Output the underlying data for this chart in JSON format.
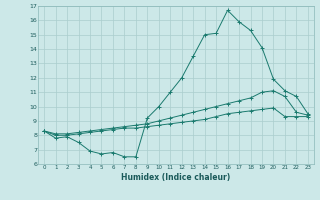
{
  "xlabel": "Humidex (Indice chaleur)",
  "bg_color": "#cce8e8",
  "line_color": "#1a7a6e",
  "grid_color": "#aacece",
  "xlim": [
    -0.5,
    23.5
  ],
  "ylim": [
    6,
    17
  ],
  "xticks": [
    0,
    1,
    2,
    3,
    4,
    5,
    6,
    7,
    8,
    9,
    10,
    11,
    12,
    13,
    14,
    15,
    16,
    17,
    18,
    19,
    20,
    21,
    22,
    23
  ],
  "yticks": [
    6,
    7,
    8,
    9,
    10,
    11,
    12,
    13,
    14,
    15,
    16,
    17
  ],
  "curve1_x": [
    0,
    1,
    2,
    3,
    4,
    5,
    6,
    7,
    8,
    9,
    10,
    11,
    12,
    13,
    14,
    15,
    16,
    17,
    18,
    19,
    20,
    21,
    22,
    23
  ],
  "curve1_y": [
    8.3,
    7.8,
    7.9,
    7.5,
    6.9,
    6.7,
    6.8,
    6.5,
    6.5,
    9.2,
    10.0,
    11.0,
    12.0,
    13.5,
    15.0,
    15.1,
    16.7,
    15.9,
    15.3,
    14.1,
    11.9,
    11.1,
    10.7,
    9.5
  ],
  "curve2_x": [
    0,
    1,
    2,
    3,
    4,
    5,
    6,
    7,
    8,
    9,
    10,
    11,
    12,
    13,
    14,
    15,
    16,
    17,
    18,
    19,
    20,
    21,
    22,
    23
  ],
  "curve2_y": [
    8.3,
    8.1,
    8.1,
    8.2,
    8.3,
    8.4,
    8.5,
    8.6,
    8.7,
    8.8,
    9.0,
    9.2,
    9.4,
    9.6,
    9.8,
    10.0,
    10.2,
    10.4,
    10.6,
    11.0,
    11.1,
    10.7,
    9.6,
    9.4
  ],
  "curve3_x": [
    0,
    1,
    2,
    3,
    4,
    5,
    6,
    7,
    8,
    9,
    10,
    11,
    12,
    13,
    14,
    15,
    16,
    17,
    18,
    19,
    20,
    21,
    22,
    23
  ],
  "curve3_y": [
    8.3,
    8.0,
    8.0,
    8.1,
    8.2,
    8.3,
    8.4,
    8.5,
    8.5,
    8.6,
    8.7,
    8.8,
    8.9,
    9.0,
    9.1,
    9.3,
    9.5,
    9.6,
    9.7,
    9.8,
    9.9,
    9.3,
    9.3,
    9.3
  ]
}
